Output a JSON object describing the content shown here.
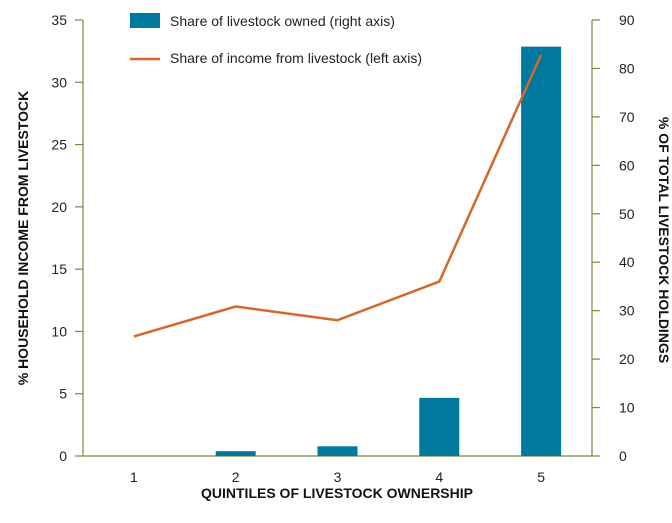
{
  "chart_data": {
    "type": "bar",
    "categories": [
      "1",
      "2",
      "3",
      "4",
      "5"
    ],
    "xlabel": "QUINTILES OF LIVESTOCK OWNERSHIP",
    "ylabel_left": "% HOUSEHOLD INCOME FROM LIVESTOCK",
    "ylabel_right": "% OF TOTAL LIVESTOCK HOLDINGS",
    "ylim_left": [
      0,
      35
    ],
    "yticks_left": [
      0,
      5,
      10,
      15,
      20,
      25,
      30,
      35
    ],
    "ylim_right": [
      0,
      90
    ],
    "yticks_right": [
      0,
      10,
      20,
      30,
      40,
      50,
      60,
      70,
      80,
      90
    ],
    "grid": false,
    "legend_position": "top",
    "series": [
      {
        "name": "Share of livestock owned (right axis)",
        "type": "bar",
        "axis": "right",
        "color": "#00799f",
        "values": [
          0,
          1,
          2,
          12,
          84.5
        ]
      },
      {
        "name": "Share of income from livestock (left axis)",
        "type": "line",
        "axis": "left",
        "color": "#d4682a",
        "values": [
          9.6,
          12,
          10.9,
          14,
          32.2
        ]
      }
    ]
  }
}
